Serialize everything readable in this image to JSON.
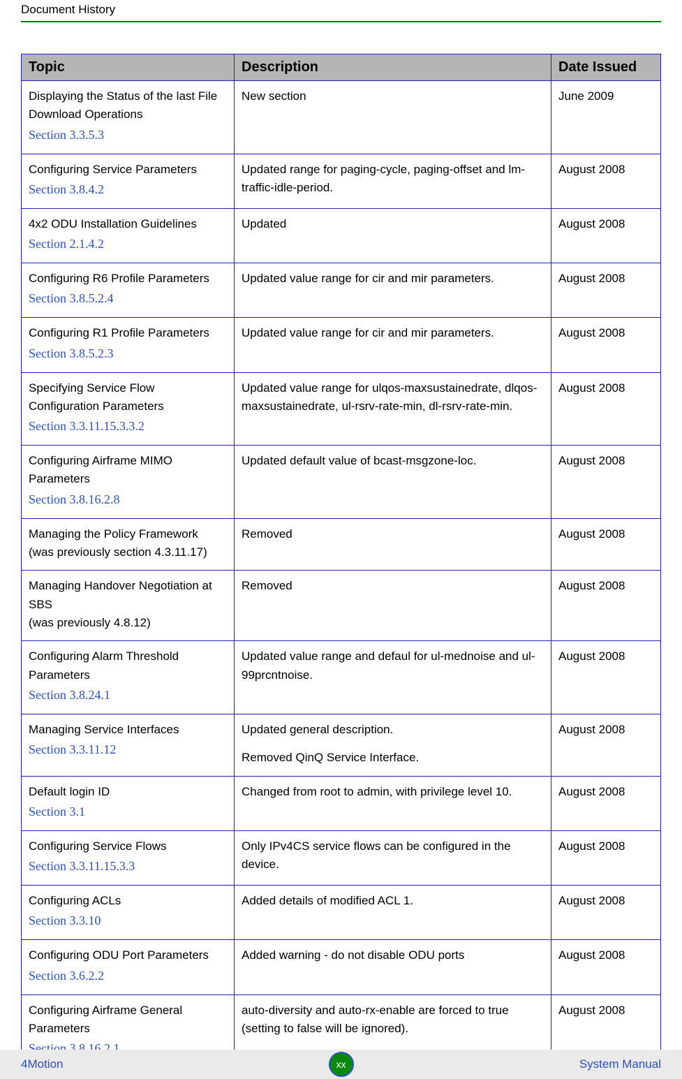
{
  "header": {
    "title": "Document History"
  },
  "table": {
    "columns": [
      "Topic",
      "Description",
      "Date Issued"
    ],
    "header_bg": "#b5b5b5",
    "border_color": "#2020c0",
    "link_color": "#2a4fc9",
    "rows": [
      {
        "topic": "Displaying the Status of the last File Download Operations",
        "section": "Section 3.3.5.3",
        "desc": "New section",
        "desc2": "",
        "date": "June 2009"
      },
      {
        "topic": "Configuring Service Parameters",
        "section": "Section 3.8.4.2",
        "desc": "Updated range for paging-cycle, paging-offset and lm-traffic-idle-period.",
        "desc2": "",
        "date": "August 2008"
      },
      {
        "topic": "4x2 ODU Installation Guidelines",
        "section": "Section 2.1.4.2",
        "desc": "Updated",
        "desc2": "",
        "date": "August 2008"
      },
      {
        "topic": "Configuring R6 Profile Parameters",
        "section": "Section 3.8.5.2.4",
        "desc": "Updated value range for cir and mir parameters.",
        "desc2": "",
        "date": "August 2008"
      },
      {
        "topic": "Configuring R1 Profile Parameters",
        "section": "Section 3.8.5.2.3",
        "desc": "Updated value range for cir and mir parameters.",
        "desc2": "",
        "date": "August 2008"
      },
      {
        "topic": "Specifying Service Flow Configuration Parameters",
        "section": "Section 3.3.11.15.3.3.2",
        "desc": "Updated value range for ulqos-maxsustainedrate, dlqos-maxsustainedrate, ul-rsrv-rate-min, dl-rsrv-rate-min.",
        "desc2": "",
        "date": "August 2008"
      },
      {
        "topic": "Configuring Airframe MIMO Parameters",
        "section": "Section 3.8.16.2.8",
        "desc": "Updated default value of bcast-msgzone-loc.",
        "desc2": "",
        "date": "August 2008"
      },
      {
        "topic": "Managing the Policy Framework\n(was previously section 4.3.11.17)",
        "section": "",
        "desc": "Removed",
        "desc2": "",
        "date": "August 2008"
      },
      {
        "topic": "Managing Handover Negotiation at SBS\n(was previously 4.8.12)",
        "section": "",
        "desc": "Removed",
        "desc2": "",
        "date": "August 2008"
      },
      {
        "topic": "Configuring Alarm Threshold Parameters",
        "section": "Section 3.8.24.1",
        "desc": "Updated value range and defaul for ul-mednoise and ul-99prcntnoise.",
        "desc2": "",
        "date": "August 2008"
      },
      {
        "topic": "Managing Service Interfaces",
        "section": "Section 3.3.11.12",
        "desc": "Updated general description.",
        "desc2": "Removed QinQ Service Interface.",
        "date": "August 2008"
      },
      {
        "topic": "Default login ID",
        "section": "Section 3.1",
        "desc": "Changed from root to admin, with privilege level 10.",
        "desc2": "",
        "date": "August 2008"
      },
      {
        "topic": "Configuring Service Flows",
        "section": "Section 3.3.11.15.3.3",
        "desc": "Only IPv4CS service flows can be configured in the device.",
        "desc2": "",
        "date": "August 2008"
      },
      {
        "topic": "Configuring ACLs",
        "section": "Section 3.3.10",
        "desc": "Added details of modified ACL 1.",
        "desc2": "",
        "date": "August 2008"
      },
      {
        "topic": "Configuring ODU Port Parameters",
        "section": "Section 3.6.2.2",
        "desc": "Added warning - do not disable ODU ports",
        "desc2": "",
        "date": "August 2008"
      },
      {
        "topic": "Configuring Airframe General Parameters",
        "section": "Section 3.8.16.2.1",
        "desc": "auto-diversity and auto-rx-enable are forced to true (setting to false will be ignored).",
        "desc2": "",
        "date": "August 2008"
      }
    ]
  },
  "footer": {
    "left": "4Motion",
    "center": "xx",
    "right": "System Manual",
    "bg": "#eaeaea",
    "circle_bg": "#0a8a0a",
    "circle_border": "#2a4fc9",
    "link_color": "#2a4fc9"
  }
}
